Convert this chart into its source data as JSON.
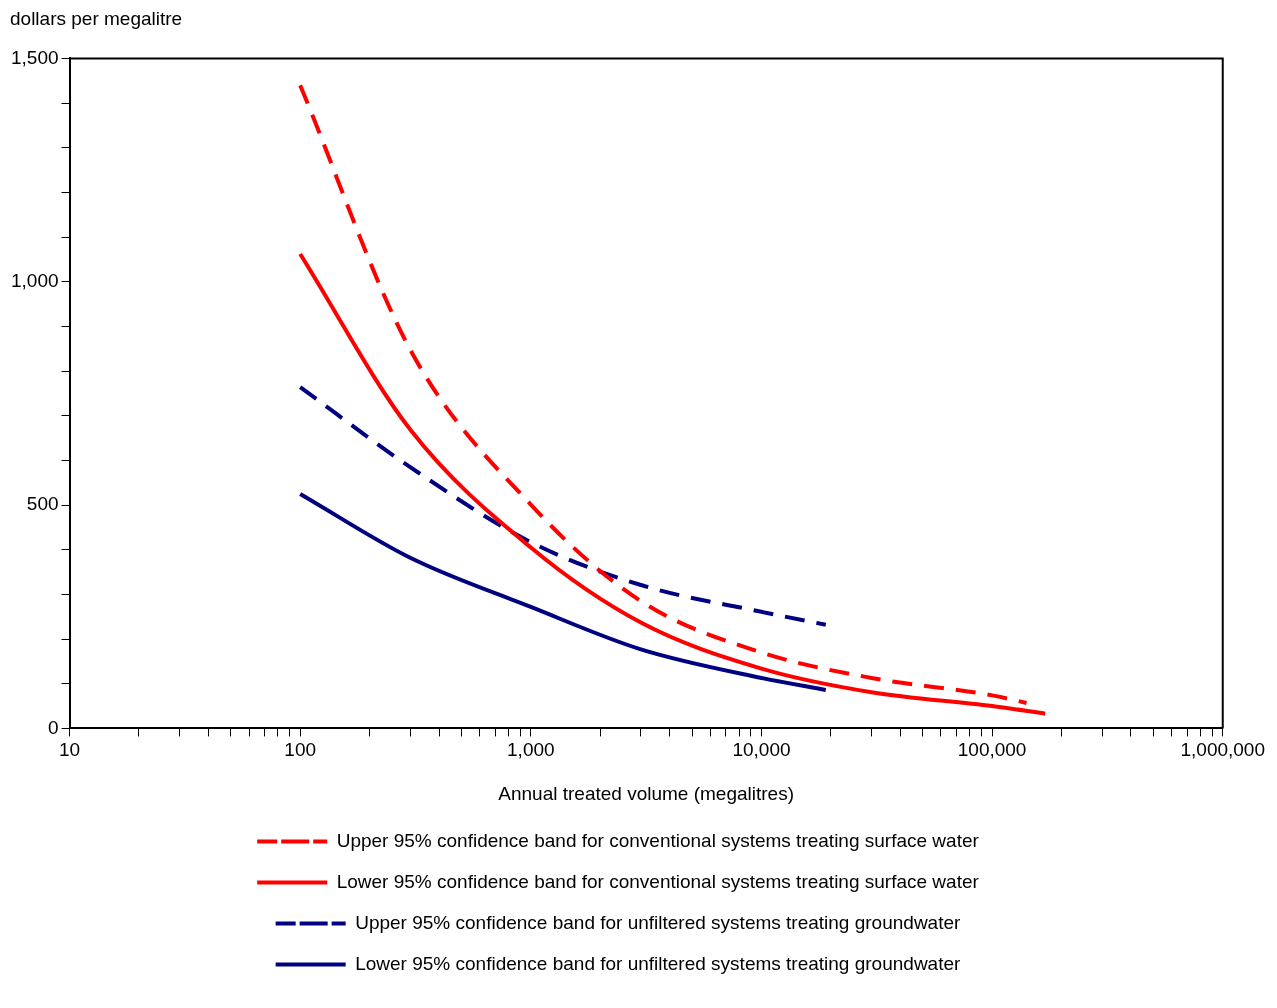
{
  "chart_data": {
    "type": "line",
    "ylabel": "dollars per megalitre",
    "xlabel": "Annual treated volume (megalitres)",
    "log": "x",
    "xlim": [
      10,
      1000000
    ],
    "ylim": [
      0,
      1500
    ],
    "xticks": [
      {
        "value": 10,
        "label": "10"
      },
      {
        "value": 20,
        "label": null
      },
      {
        "value": 30,
        "label": null
      },
      {
        "value": 40,
        "label": null
      },
      {
        "value": 50,
        "label": null
      },
      {
        "value": 60,
        "label": null
      },
      {
        "value": 70,
        "label": null
      },
      {
        "value": 80,
        "label": null
      },
      {
        "value": 90,
        "label": null
      },
      {
        "value": 100,
        "label": "100"
      },
      {
        "value": 200,
        "label": null
      },
      {
        "value": 300,
        "label": null
      },
      {
        "value": 400,
        "label": null
      },
      {
        "value": 500,
        "label": null
      },
      {
        "value": 600,
        "label": null
      },
      {
        "value": 700,
        "label": null
      },
      {
        "value": 800,
        "label": null
      },
      {
        "value": 900,
        "label": null
      },
      {
        "value": 1000,
        "label": "1,000"
      },
      {
        "value": 2000,
        "label": null
      },
      {
        "value": 3000,
        "label": null
      },
      {
        "value": 4000,
        "label": null
      },
      {
        "value": 5000,
        "label": null
      },
      {
        "value": 6000,
        "label": null
      },
      {
        "value": 7000,
        "label": null
      },
      {
        "value": 8000,
        "label": null
      },
      {
        "value": 9000,
        "label": null
      },
      {
        "value": 10000,
        "label": "10,000"
      },
      {
        "value": 20000,
        "label": null
      },
      {
        "value": 30000,
        "label": null
      },
      {
        "value": 40000,
        "label": null
      },
      {
        "value": 50000,
        "label": null
      },
      {
        "value": 60000,
        "label": null
      },
      {
        "value": 70000,
        "label": null
      },
      {
        "value": 80000,
        "label": null
      },
      {
        "value": 90000,
        "label": null
      },
      {
        "value": 100000,
        "label": "100,000"
      },
      {
        "value": 200000,
        "label": null
      },
      {
        "value": 300000,
        "label": null
      },
      {
        "value": 400000,
        "label": null
      },
      {
        "value": 500000,
        "label": null
      },
      {
        "value": 600000,
        "label": null
      },
      {
        "value": 700000,
        "label": null
      },
      {
        "value": 800000,
        "label": null
      },
      {
        "value": 900000,
        "label": null
      },
      {
        "value": 1000000,
        "label": "1,000,000"
      }
    ],
    "yticks": [
      {
        "value": 0,
        "label": "0"
      },
      {
        "value": 100,
        "label": null
      },
      {
        "value": 200,
        "label": null
      },
      {
        "value": 300,
        "label": null
      },
      {
        "value": 400,
        "label": null
      },
      {
        "value": 500,
        "label": "500"
      },
      {
        "value": 600,
        "label": null
      },
      {
        "value": 700,
        "label": null
      },
      {
        "value": 800,
        "label": null
      },
      {
        "value": 900,
        "label": null
      },
      {
        "value": 1000,
        "label": "1,000"
      },
      {
        "value": 1100,
        "label": null
      },
      {
        "value": 1200,
        "label": null
      },
      {
        "value": 1300,
        "label": null
      },
      {
        "value": 1400,
        "label": null
      },
      {
        "value": 1500,
        "label": "1,500"
      }
    ],
    "grid": false,
    "legend": "bottom",
    "marker": "none",
    "series": [
      {
        "name": "Upper 95% confidence band for conventional systems treating surface water",
        "color": "#ff0000",
        "line_style": "dashed",
        "x": [
          100,
          300,
          1000,
          3000,
          10000,
          30000,
          100000,
          141000
        ],
        "values": [
          1440,
          848,
          501,
          285,
          170,
          113,
          74,
          57
        ]
      },
      {
        "name": "Lower 95% confidence band for conventional systems treating surface water",
        "color": "#ff0000",
        "line_style": "solid",
        "x": [
          100,
          300,
          1000,
          3000,
          10000,
          30000,
          100000,
          170000
        ],
        "values": [
          1062,
          669,
          405,
          237,
          134,
          81,
          50,
          33
        ]
      },
      {
        "name": "Upper 95% confidence band for unfiltered systems treating groundwater",
        "color": "#000080",
        "line_style": "dashed",
        "x": [
          100,
          300,
          1000,
          3000,
          10000,
          19000
        ],
        "values": [
          764,
          585,
          417,
          321,
          261,
          232
        ]
      },
      {
        "name": "Lower 95% confidence band for unfiltered systems treating groundwater",
        "color": "#000080",
        "line_style": "solid",
        "x": [
          100,
          300,
          1000,
          3000,
          10000,
          19000
        ],
        "values": [
          525,
          382,
          272,
          177,
          113,
          86
        ]
      }
    ]
  }
}
